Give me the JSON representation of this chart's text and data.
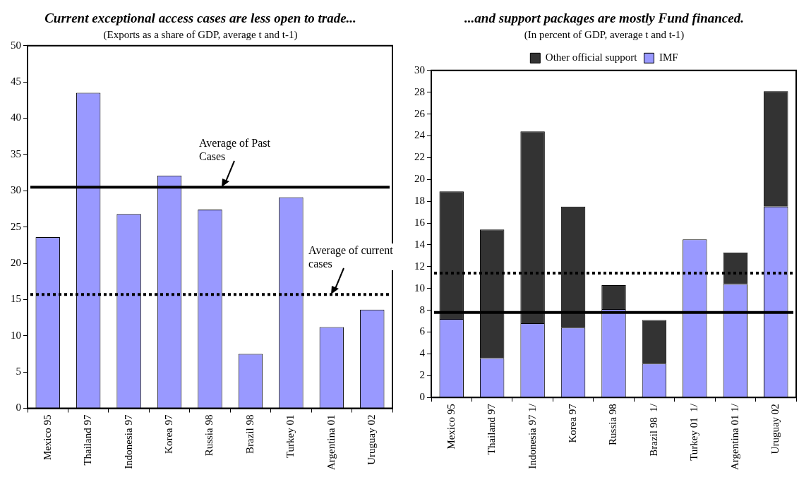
{
  "chart_data": [
    {
      "type": "bar",
      "title": "Current exceptional access cases are less open to trade...",
      "subtitle": "(Exports as a share of GDP, average t and t-1)",
      "categories": [
        "Mexico 95",
        "Thailand 97",
        "Indonesia 97",
        "Korea 97",
        "Russia 98",
        "Brazil 98",
        "Turkey 01",
        "Argentina 01",
        "Uruguay 02"
      ],
      "values": [
        23.6,
        43.5,
        26.8,
        32.1,
        27.4,
        7.5,
        29.1,
        11.2,
        13.6
      ],
      "color": "#9999ff",
      "ylim": [
        0,
        50
      ],
      "yticks": [
        0,
        5,
        10,
        15,
        20,
        25,
        30,
        35,
        40,
        45,
        50
      ],
      "ref_lines": [
        {
          "axis": "y",
          "value": 30.5,
          "label": "Average of Past Cases",
          "color": "#000000",
          "line_style": "solid"
        },
        {
          "axis": "y",
          "value": 15.7,
          "label": "Average of current cases",
          "color": "#000000",
          "line_style": "dotted"
        }
      ]
    },
    {
      "type": "bar",
      "title": "...and support packages are mostly Fund financed.",
      "subtitle": "(In percent of GDP, average t and t-1)",
      "categories": [
        "Mexico 95",
        "Thailand 97",
        "Indonesia 97 1/",
        "Korea 97",
        "Russia 98",
        "Brazil 98  1/",
        "Turkey 01  1/",
        "Argentina 01 1/",
        "Uruguay 02"
      ],
      "stacked": true,
      "legend": "top",
      "series": [
        {
          "name": "IMF",
          "color": "#9999ff",
          "values": [
            7.2,
            3.6,
            6.8,
            6.4,
            8.1,
            3.1,
            14.5,
            10.4,
            17.5
          ]
        },
        {
          "name": "Other official support",
          "color": "#333333",
          "values": [
            11.7,
            11.8,
            17.6,
            11.1,
            2.2,
            4.0,
            0,
            2.9,
            10.6
          ]
        }
      ],
      "ylim": [
        0,
        30
      ],
      "yticks": [
        0,
        2,
        4,
        6,
        8,
        10,
        12,
        14,
        16,
        18,
        20,
        22,
        24,
        26,
        28,
        30
      ],
      "ref_lines": [
        {
          "axis": "y",
          "value": 7.8,
          "color": "#000000",
          "line_style": "solid"
        },
        {
          "axis": "y",
          "value": 11.4,
          "color": "#000000",
          "line_style": "dotted"
        }
      ]
    }
  ]
}
